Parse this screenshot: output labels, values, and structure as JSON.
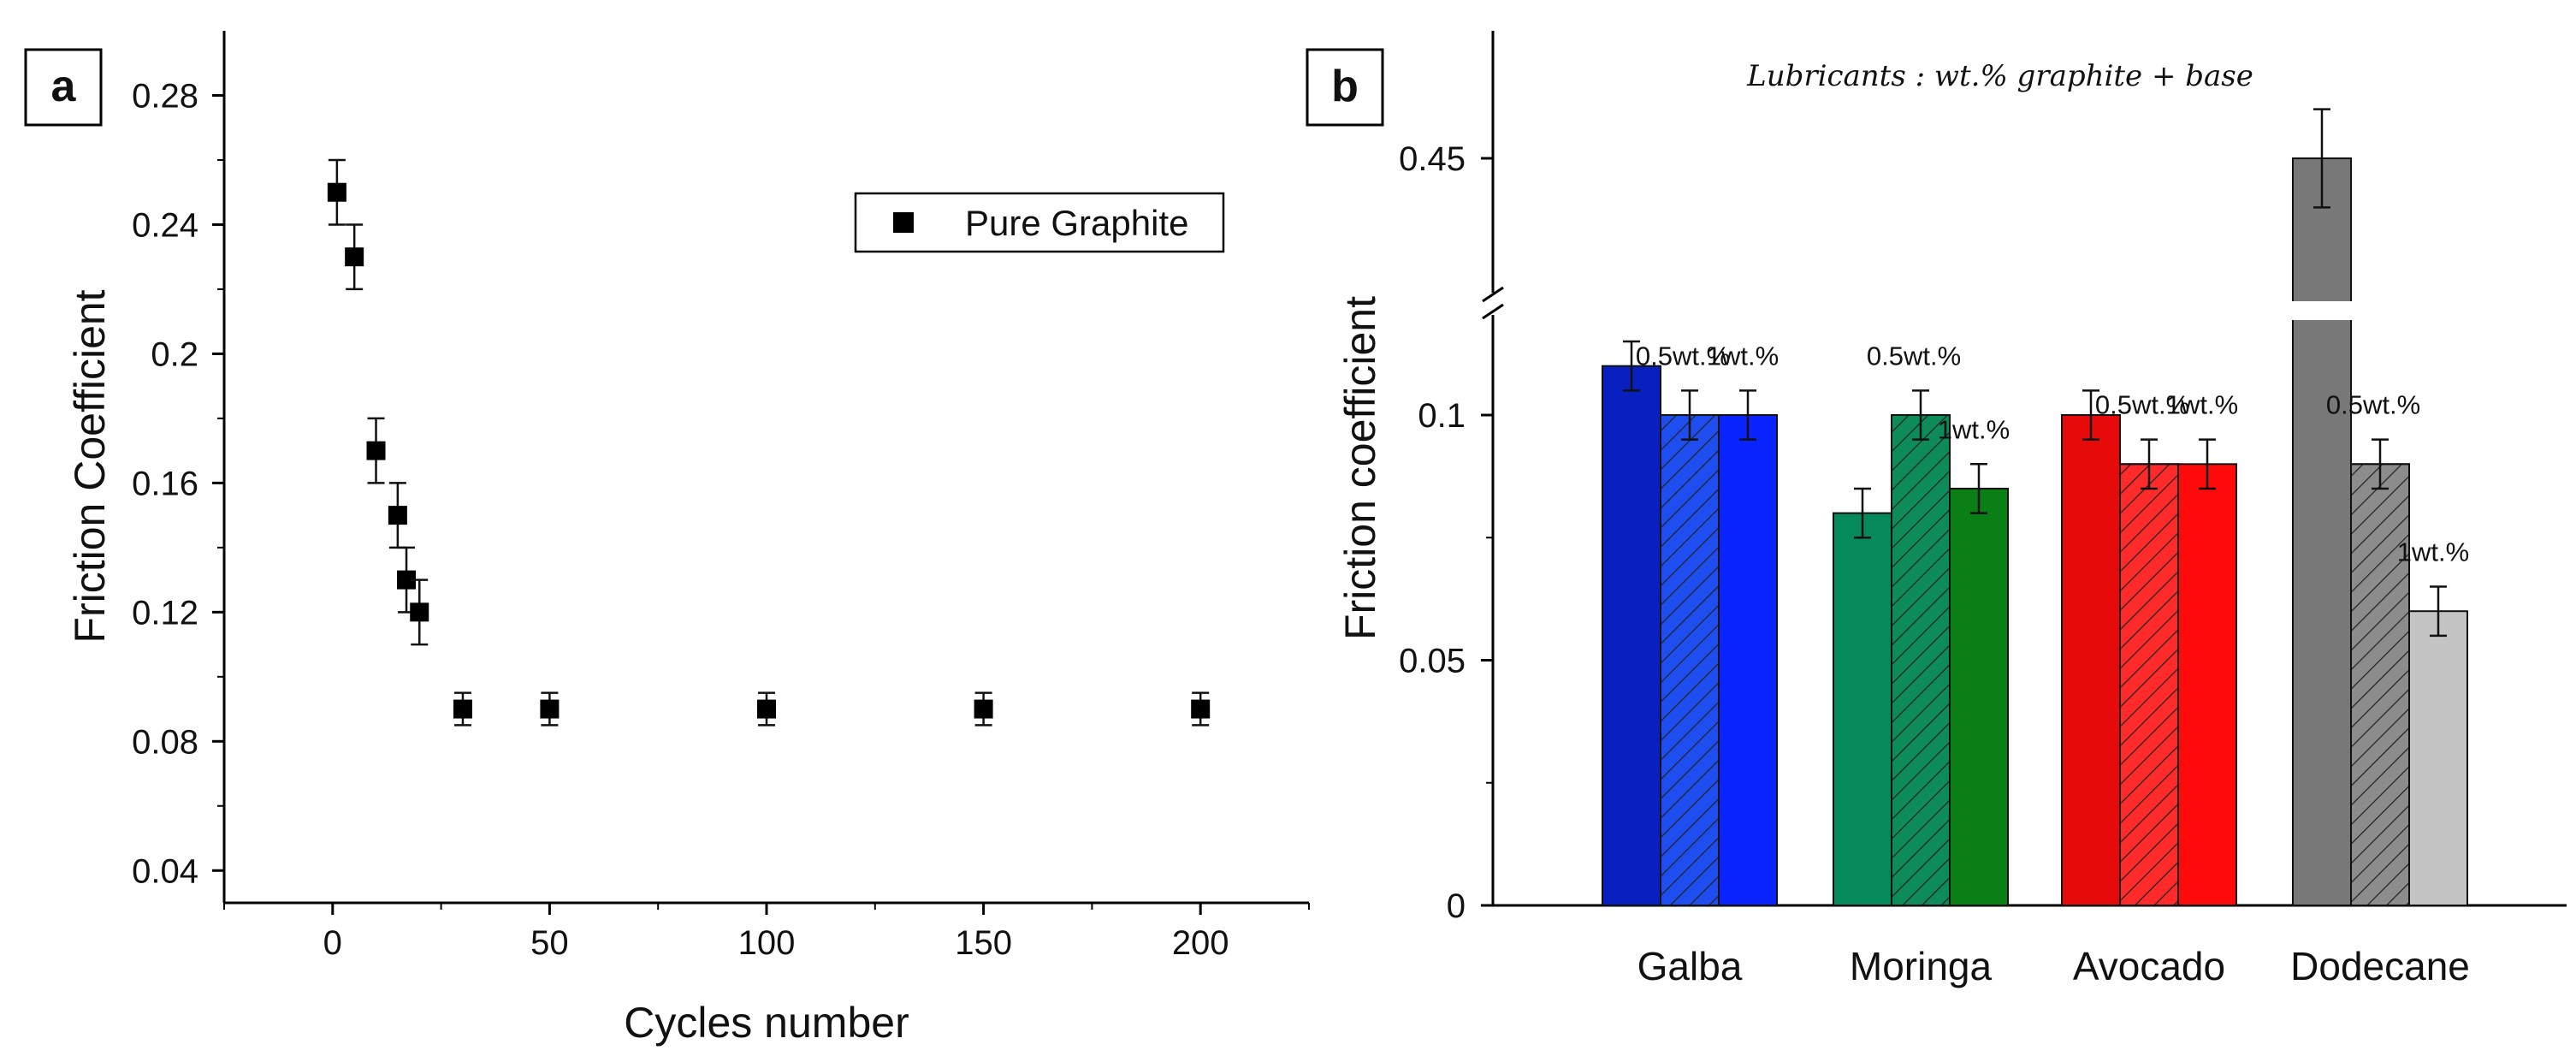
{
  "chart_data": [
    {
      "panel": "a",
      "type": "scatter",
      "title": "",
      "xlabel": "Cycles number",
      "ylabel": "Friction Coefficient",
      "xlim": [
        -25,
        225
      ],
      "ylim": [
        0.03,
        0.3
      ],
      "xticks": [
        0,
        50,
        100,
        150,
        200
      ],
      "xtick_labels": [
        "0",
        "50",
        "100",
        "150",
        "200"
      ],
      "yticks": [
        0.04,
        0.08,
        0.12,
        0.16,
        0.2,
        0.24,
        0.28
      ],
      "ytick_labels": [
        "0.04",
        "0.08",
        "0.12",
        "0.16",
        "0.2",
        "0.24",
        "0.28"
      ],
      "legend": {
        "entries": [
          "Pure Graphite"
        ],
        "placement": "top-right"
      },
      "series": [
        {
          "name": "Pure Graphite",
          "marker": "square",
          "color": "#000000",
          "points": [
            {
              "x": 1,
              "y": 0.25,
              "err": 0.01
            },
            {
              "x": 5,
              "y": 0.23,
              "err": 0.01
            },
            {
              "x": 10,
              "y": 0.17,
              "err": 0.01
            },
            {
              "x": 15,
              "y": 0.15,
              "err": 0.01
            },
            {
              "x": 17,
              "y": 0.13,
              "err": 0.01
            },
            {
              "x": 20,
              "y": 0.12,
              "err": 0.01
            },
            {
              "x": 30,
              "y": 0.09,
              "err": 0.005
            },
            {
              "x": 50,
              "y": 0.09,
              "err": 0.005
            },
            {
              "x": 100,
              "y": 0.09,
              "err": 0.005
            },
            {
              "x": 150,
              "y": 0.09,
              "err": 0.005
            },
            {
              "x": 200,
              "y": 0.09,
              "err": 0.005
            }
          ]
        }
      ]
    },
    {
      "panel": "b",
      "type": "bar",
      "subtitle": "Lubricants : wt.% graphite + base",
      "xlabel": "",
      "ylabel": "Friction coefficient",
      "ylim": [
        0,
        0.45
      ],
      "axis_break": true,
      "yticks": [
        0,
        0.05,
        0.1,
        0.45
      ],
      "ytick_labels": [
        "0",
        "0.05",
        "0.1",
        "0.45"
      ],
      "categories": [
        "Galba",
        "Moringa",
        "Avocado",
        "Dodecane"
      ],
      "series": [
        {
          "name": "base",
          "label": "",
          "hatched": false,
          "values": [
            0.11,
            0.08,
            0.1,
            0.45
          ],
          "errors": [
            0.005,
            0.005,
            0.005,
            0.01
          ]
        },
        {
          "name": "0.5wt.%",
          "label": "0.5wt.%",
          "hatched": true,
          "values": [
            0.1,
            0.1,
            0.09,
            0.09
          ],
          "errors": [
            0.005,
            0.005,
            0.005,
            0.005
          ]
        },
        {
          "name": "1wt.%",
          "label": "1wt.%",
          "hatched": false,
          "values": [
            0.1,
            0.085,
            0.09,
            0.06
          ],
          "errors": [
            0.005,
            0.005,
            0.005,
            0.005
          ]
        }
      ],
      "group_colors": [
        [
          "#0a1fbf",
          "#1f4ef0",
          "#0a24ff"
        ],
        [
          "#068a5c",
          "#0d8c5a",
          "#0a7f16"
        ],
        [
          "#e60a0a",
          "#ff2b2b",
          "#ff0a0a"
        ],
        [
          "#787878",
          "#8c8c8c",
          "#c4c4c4"
        ]
      ]
    }
  ]
}
